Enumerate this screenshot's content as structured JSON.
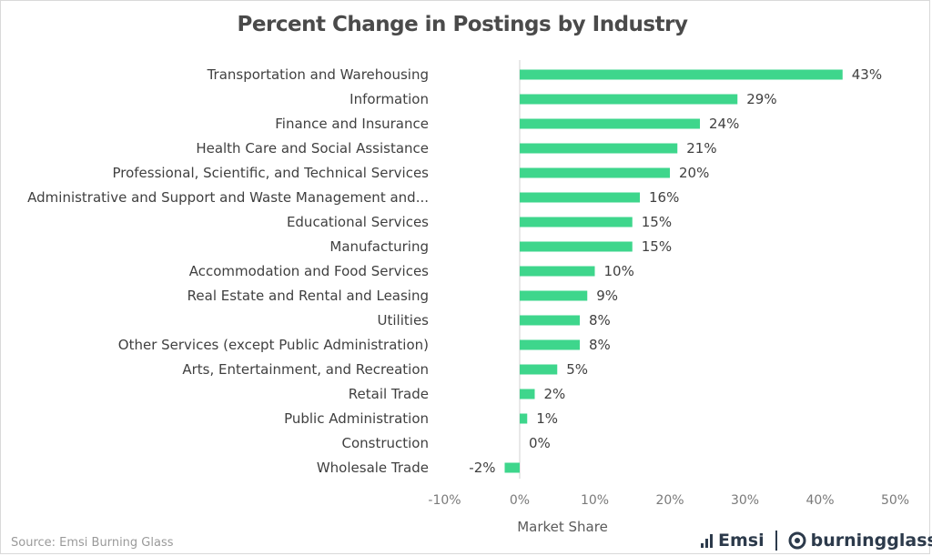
{
  "chart_data": {
    "type": "bar",
    "orientation": "horizontal",
    "title": "Percent Change in Postings by Industry",
    "xlabel": "Market Share",
    "ylabel": "",
    "xlim": [
      -10,
      50
    ],
    "xticks": [
      -10,
      0,
      10,
      20,
      30,
      40,
      50
    ],
    "xtick_labels": [
      "-10%",
      "0%",
      "10%",
      "20%",
      "30%",
      "40%",
      "50%"
    ],
    "grid": false,
    "legend": "none",
    "bar_color": "#3ed68c",
    "categories": [
      "Transportation and Warehousing",
      "Information",
      "Finance and Insurance",
      "Health Care and Social Assistance",
      "Professional, Scientific, and Technical Services",
      "Administrative and Support and Waste Management and...",
      "Educational Services",
      "Manufacturing",
      "Accommodation and Food Services",
      "Real Estate and Rental and Leasing",
      "Utilities",
      "Other Services (except Public Administration)",
      "Arts, Entertainment, and Recreation",
      "Retail Trade",
      "Public Administration",
      "Construction",
      "Wholesale Trade"
    ],
    "values": [
      43,
      29,
      24,
      21,
      20,
      16,
      15,
      15,
      10,
      9,
      8,
      8,
      5,
      2,
      1,
      0,
      -2
    ],
    "data_labels": [
      "43%",
      "29%",
      "24%",
      "21%",
      "20%",
      "16%",
      "15%",
      "15%",
      "10%",
      "9%",
      "8%",
      "8%",
      "5%",
      "2%",
      "1%",
      "0%",
      "-2%"
    ]
  },
  "footer": {
    "source": "Source:  Emsi Burning Glass",
    "logo_emsi": "Emsi",
    "logo_burningglass": "burningglass"
  },
  "colors": {
    "title": "#4a4a4a",
    "text": "#404040",
    "axis": "#d0d0d0",
    "logo": "#2c3a4b"
  }
}
